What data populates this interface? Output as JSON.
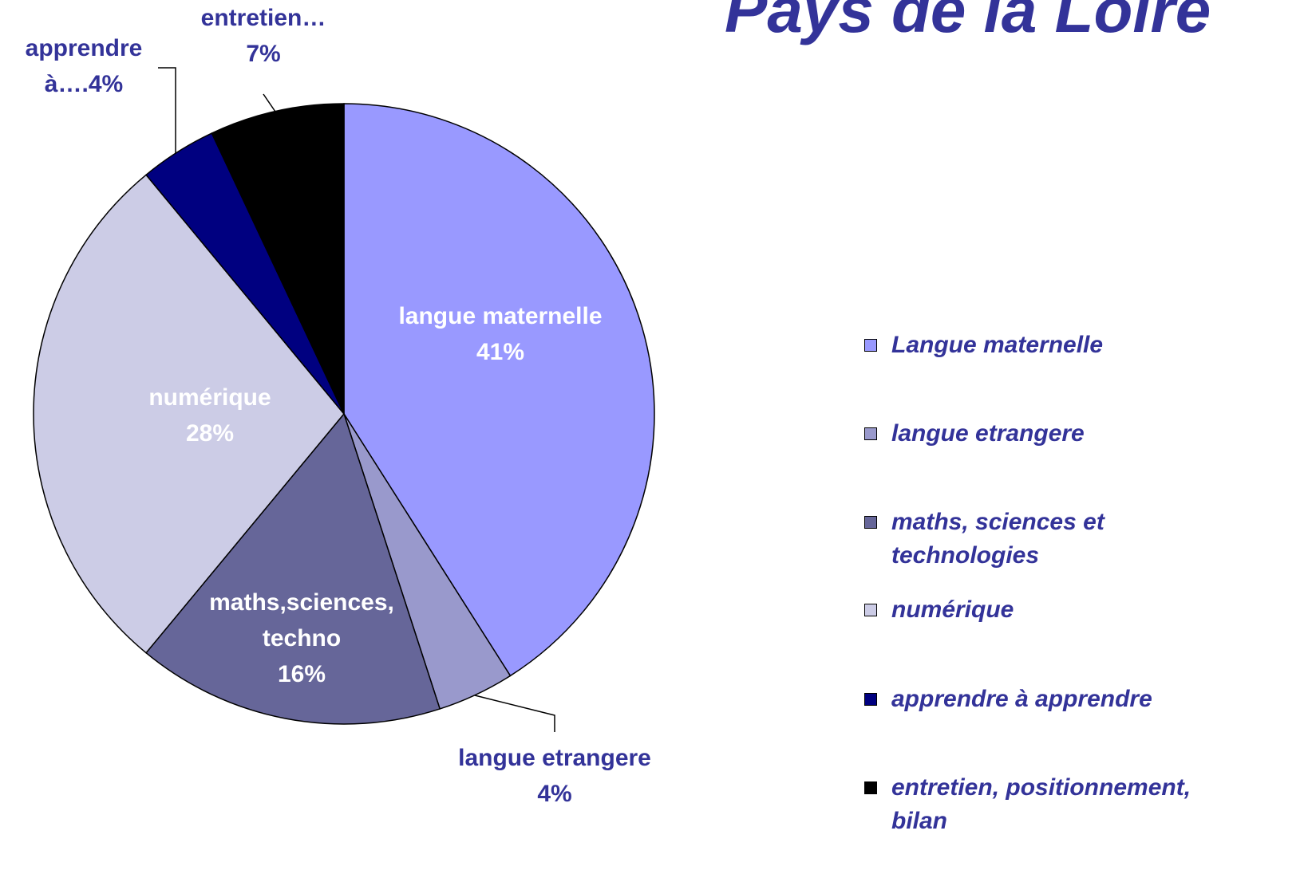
{
  "chart_data": {
    "type": "pie",
    "title": "Pays de la Loire",
    "categories": [
      "Langue maternelle",
      "langue etrangere",
      "maths, sciences et technologies",
      "numérique",
      "apprendre à apprendre",
      "entretien, positionnement, bilan"
    ],
    "values": [
      41,
      4,
      16,
      28,
      4,
      7
    ],
    "value_labels": [
      [
        "langue maternelle",
        "41%"
      ],
      [
        "langue etrangere",
        "4%"
      ],
      [
        "maths,sciences,",
        "techno",
        "16%"
      ],
      [
        "numérique",
        "28%"
      ],
      [
        "apprendre",
        "à….4%"
      ],
      [
        "entretien…",
        "7%"
      ]
    ],
    "colors": [
      "#9999ff",
      "#9999cc",
      "#666699",
      "#cccce6",
      "#000080",
      "#000000"
    ],
    "legend": "right"
  }
}
